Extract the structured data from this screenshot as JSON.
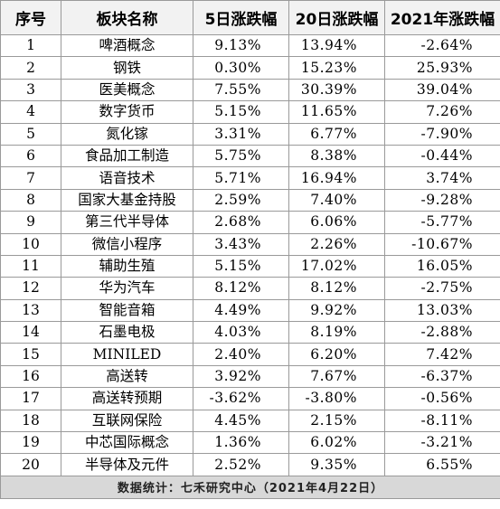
{
  "table": {
    "headers": [
      "序号",
      "板块名称",
      "5日涨跌幅",
      "20日涨跌幅",
      "2021年涨跌幅"
    ],
    "rows": [
      {
        "idx": "1",
        "name": "啤酒概念",
        "d5": "9.13%",
        "d20": "13.94%",
        "y2021": "-2.64%"
      },
      {
        "idx": "2",
        "name": "钢铁",
        "d5": "0.30%",
        "d20": "15.23%",
        "y2021": "25.93%"
      },
      {
        "idx": "3",
        "name": "医美概念",
        "d5": "7.55%",
        "d20": "30.39%",
        "y2021": "39.04%"
      },
      {
        "idx": "4",
        "name": "数字货币",
        "d5": "5.15%",
        "d20": "11.65%",
        "y2021": "7.26%"
      },
      {
        "idx": "5",
        "name": "氮化镓",
        "d5": "3.31%",
        "d20": "6.77%",
        "y2021": "-7.90%"
      },
      {
        "idx": "6",
        "name": "食品加工制造",
        "d5": "5.75%",
        "d20": "8.38%",
        "y2021": "-0.44%"
      },
      {
        "idx": "7",
        "name": "语音技术",
        "d5": "5.71%",
        "d20": "16.94%",
        "y2021": "3.74%"
      },
      {
        "idx": "8",
        "name": "国家大基金持股",
        "d5": "2.59%",
        "d20": "7.40%",
        "y2021": "-9.28%"
      },
      {
        "idx": "9",
        "name": "第三代半导体",
        "d5": "2.68%",
        "d20": "6.06%",
        "y2021": "-5.77%"
      },
      {
        "idx": "10",
        "name": "微信小程序",
        "d5": "3.43%",
        "d20": "2.26%",
        "y2021": "-10.67%"
      },
      {
        "idx": "11",
        "name": "辅助生殖",
        "d5": "5.15%",
        "d20": "17.02%",
        "y2021": "16.05%"
      },
      {
        "idx": "12",
        "name": "华为汽车",
        "d5": "8.12%",
        "d20": "8.12%",
        "y2021": "-2.75%"
      },
      {
        "idx": "13",
        "name": "智能音箱",
        "d5": "4.49%",
        "d20": "9.92%",
        "y2021": "13.03%"
      },
      {
        "idx": "14",
        "name": "石墨电极",
        "d5": "4.03%",
        "d20": "8.19%",
        "y2021": "-2.88%"
      },
      {
        "idx": "15",
        "name": "MINILED",
        "d5": "2.40%",
        "d20": "6.20%",
        "y2021": "7.42%"
      },
      {
        "idx": "16",
        "name": "高送转",
        "d5": "3.92%",
        "d20": "7.67%",
        "y2021": "-6.37%"
      },
      {
        "idx": "17",
        "name": "高送转预期",
        "d5": "-3.62%",
        "d20": "-3.80%",
        "y2021": "-0.56%"
      },
      {
        "idx": "18",
        "name": "互联网保险",
        "d5": "4.45%",
        "d20": "2.15%",
        "y2021": "-8.11%"
      },
      {
        "idx": "19",
        "name": "中芯国际概念",
        "d5": "1.36%",
        "d20": "6.02%",
        "y2021": "-3.21%"
      },
      {
        "idx": "20",
        "name": "半导体及元件",
        "d5": "2.52%",
        "d20": "9.35%",
        "y2021": "6.55%"
      }
    ],
    "footer": "数据统计：七禾研究中心（2021年4月22日）"
  },
  "colors": {
    "header_bg": "#f2f2f2",
    "footer_bg": "#d8d8d8",
    "grid": "#9a9a9a"
  }
}
